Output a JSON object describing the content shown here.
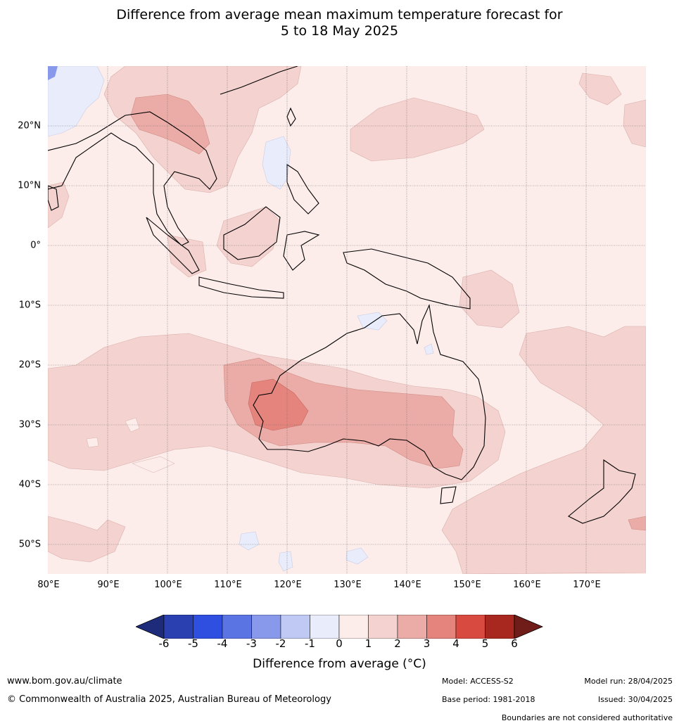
{
  "title_line1": "Difference from average mean maximum temperature forecast for",
  "title_line2": "5 to 18 May 2025",
  "lat_labels": [
    "20°N",
    "10°N",
    "0°",
    "10°S",
    "20°S",
    "30°S",
    "40°S",
    "50°S"
  ],
  "lon_labels": [
    "80°E",
    "90°E",
    "100°E",
    "110°E",
    "120°E",
    "130°E",
    "140°E",
    "150°E",
    "160°E",
    "170°E"
  ],
  "colorbar": {
    "ticks": [
      "-6",
      "-5",
      "-4",
      "-3",
      "-2",
      "-1",
      "0",
      "1",
      "2",
      "3",
      "4",
      "5",
      "6"
    ],
    "colors": [
      "#1d2b7a",
      "#2a3fb0",
      "#2f4fe0",
      "#5a74e4",
      "#8899ec",
      "#c0c8f4",
      "#e8ecfb",
      "#fcecea",
      "#f4d2cf",
      "#ebaba6",
      "#e4847c",
      "#d84a40",
      "#a8281f",
      "#701d1a"
    ],
    "label": "Difference from average (°C)"
  },
  "footer": {
    "website": "www.bom.gov.au/climate",
    "copyright": "© Commonwealth of Australia 2025, Australian Bureau of Meteorology",
    "model": "Model: ACCESS-S2",
    "base_period": "Base period: 1981-2018",
    "model_run": "Model run: 28/04/2025",
    "issued": "Issued: 30/04/2025",
    "disclaimer": "Boundaries are not considered authoritative"
  }
}
